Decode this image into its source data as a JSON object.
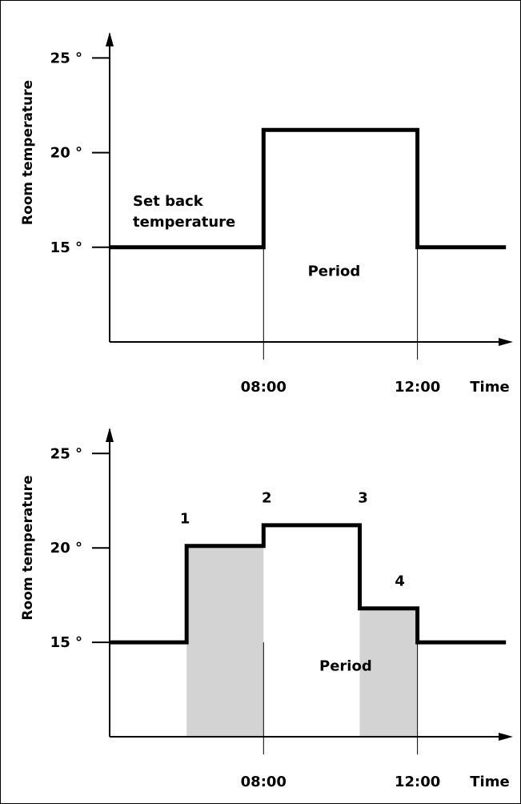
{
  "colors": {
    "line": "#000000",
    "shade": "#d3d3d3",
    "background": "#ffffff"
  },
  "chart_data": [
    {
      "type": "line",
      "ylabel": "Room temperature",
      "y_ticks": [
        {
          "value": 25,
          "label": "25 °"
        },
        {
          "value": 20,
          "label": "20 °"
        },
        {
          "value": 15,
          "label": "15 °"
        }
      ],
      "x_ticks": [
        {
          "value": 8,
          "label": "08:00"
        },
        {
          "value": 12,
          "label": "12:00"
        }
      ],
      "xlabel": "Time",
      "xlim": [
        4,
        14.4
      ],
      "ylim": [
        10,
        26.2
      ],
      "steps": [
        [
          4,
          15
        ],
        [
          8,
          15
        ],
        [
          8,
          21.2
        ],
        [
          12,
          21.2
        ],
        [
          12,
          15
        ],
        [
          14.3,
          15
        ]
      ],
      "annotations": [
        {
          "text_lines": [
            "Set back",
            "temperature"
          ],
          "x": 4.5,
          "y": 17.2
        },
        {
          "text": "Period",
          "x": 10,
          "y": 13.5
        }
      ],
      "shaded": []
    },
    {
      "type": "line",
      "ylabel": "Room temperature",
      "y_ticks": [
        {
          "value": 25,
          "label": "25 °"
        },
        {
          "value": 20,
          "label": "20 °"
        },
        {
          "value": 15,
          "label": "15 °"
        }
      ],
      "x_ticks": [
        {
          "value": 8,
          "label": "08:00"
        },
        {
          "value": 12,
          "label": "12:00"
        }
      ],
      "xlabel": "Time",
      "xlim": [
        4,
        14.4
      ],
      "ylim": [
        10,
        26.2
      ],
      "steps": [
        [
          4,
          15
        ],
        [
          6,
          15
        ],
        [
          6,
          20.1
        ],
        [
          8,
          20.1
        ],
        [
          8,
          21.2
        ],
        [
          10.5,
          21.2
        ],
        [
          10.5,
          16.8
        ],
        [
          12,
          16.8
        ],
        [
          12,
          15
        ],
        [
          14.3,
          15
        ]
      ],
      "shaded": [
        [
          6,
          8
        ],
        [
          10.5,
          12
        ]
      ],
      "points": [
        {
          "label": "1",
          "x": 6,
          "y": 21.3
        },
        {
          "label": "2",
          "x": 8,
          "y": 22.4
        },
        {
          "label": "3",
          "x": 10.5,
          "y": 22.4
        },
        {
          "label": "4",
          "x": 12,
          "y": 18.0
        }
      ],
      "annotations": [
        {
          "text": "Period",
          "x": 10.3,
          "y": 13.5
        }
      ]
    }
  ]
}
